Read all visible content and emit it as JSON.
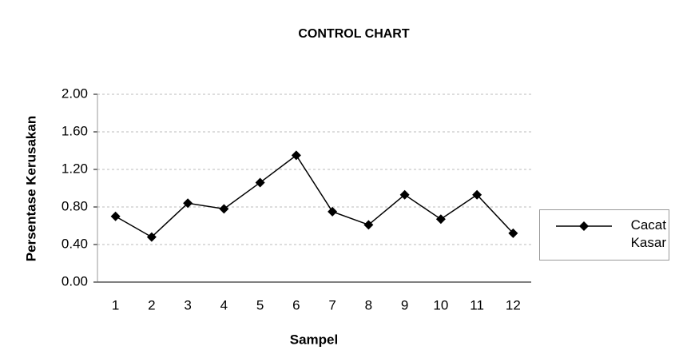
{
  "chart_data": {
    "type": "line",
    "title": "CONTROL CHART",
    "x_label": "Sampel",
    "y_label": "Persentase Kerusakan",
    "categories": [
      "1",
      "2",
      "3",
      "4",
      "5",
      "6",
      "7",
      "8",
      "9",
      "10",
      "11",
      "12"
    ],
    "series": [
      {
        "name": "Cacat Kasar",
        "color": "#000000",
        "values": [
          0.7,
          0.48,
          0.84,
          0.78,
          1.06,
          1.35,
          0.75,
          0.61,
          0.93,
          0.67,
          0.93,
          0.52
        ]
      }
    ],
    "ylim": [
      0,
      2
    ],
    "yticks": [
      {
        "value": 0,
        "label": "0.00"
      },
      {
        "value": 0.4,
        "label": "0.40"
      },
      {
        "value": 0.8,
        "label": "0.80"
      },
      {
        "value": 1.2,
        "label": "1.20"
      },
      {
        "value": 1.6,
        "label": "1.60"
      },
      {
        "value": 2,
        "label": "2.00"
      }
    ],
    "grid": true,
    "legend": "right"
  }
}
